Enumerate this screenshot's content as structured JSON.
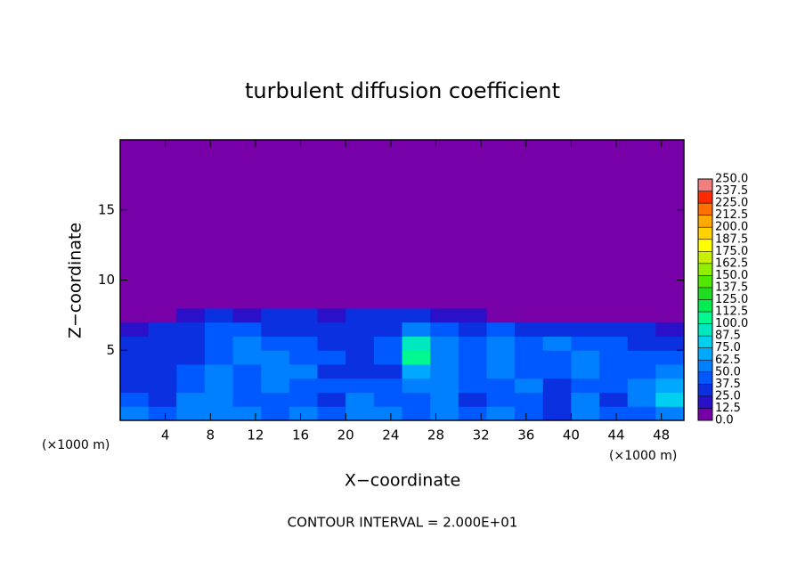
{
  "chart_data": {
    "type": "heatmap",
    "title": "turbulent diffusion coefficient",
    "x_label": "X−coordinate",
    "y_label": "Z−coordinate",
    "x_unit_labels": [
      "(×1000 m)",
      "(×1000 m)"
    ],
    "footer": "CONTOUR INTERVAL = 2.000E+01",
    "xlim": [
      0,
      50
    ],
    "ylim": [
      0,
      20
    ],
    "xticks": [
      4,
      8,
      12,
      16,
      20,
      24,
      28,
      32,
      36,
      40,
      44,
      48
    ],
    "yticks": [
      5,
      10,
      15
    ],
    "x_edges": [
      0,
      2.5,
      5,
      7.5,
      10,
      12.5,
      15,
      17.5,
      20,
      22.5,
      25,
      27.5,
      30,
      32.5,
      35,
      37.5,
      40,
      42.5,
      45,
      47.5,
      50
    ],
    "z_edges": [
      0,
      1,
      2,
      3,
      4,
      5,
      6,
      7,
      8,
      20
    ],
    "values": [
      [
        50,
        40,
        55,
        60,
        55,
        45,
        60,
        40,
        55,
        50,
        45,
        55,
        40,
        50,
        45,
        35,
        55,
        40,
        45,
        60
      ],
      [
        40,
        30,
        50,
        55,
        45,
        40,
        45,
        30,
        60,
        40,
        40,
        50,
        35,
        45,
        40,
        30,
        50,
        35,
        50,
        75
      ],
      [
        35,
        30,
        45,
        55,
        40,
        55,
        45,
        40,
        40,
        45,
        55,
        60,
        45,
        40,
        50,
        35,
        45,
        40,
        55,
        70
      ],
      [
        30,
        35,
        40,
        50,
        45,
        60,
        50,
        35,
        30,
        35,
        70,
        55,
        40,
        50,
        45,
        40,
        50,
        45,
        40,
        50
      ],
      [
        35,
        30,
        35,
        45,
        55,
        50,
        45,
        40,
        35,
        40,
        100,
        60,
        45,
        55,
        40,
        45,
        55,
        40,
        45,
        40
      ],
      [
        30,
        30,
        35,
        40,
        50,
        45,
        40,
        35,
        35,
        40,
        90,
        50,
        40,
        50,
        45,
        50,
        45,
        40,
        35,
        35
      ],
      [
        15,
        30,
        35,
        40,
        40,
        35,
        35,
        30,
        30,
        35,
        55,
        45,
        35,
        40,
        30,
        35,
        30,
        30,
        25,
        20
      ],
      [
        0,
        5,
        20,
        25,
        20,
        25,
        25,
        20,
        30,
        30,
        25,
        20,
        15,
        10,
        5,
        5,
        5,
        0,
        0,
        0
      ],
      [
        0,
        0,
        0,
        0,
        0,
        0,
        0,
        0,
        0,
        0,
        0,
        0,
        0,
        0,
        0,
        0,
        0,
        0,
        0,
        0
      ]
    ],
    "colorbar_lim": [
      0,
      250
    ],
    "colorbar_ticks": [
      {
        "value": 0,
        "label": "0.0"
      },
      12.5,
      {
        "value": 25,
        "label": "25.0"
      },
      37.5,
      {
        "value": 50,
        "label": "50.0"
      },
      62.5,
      {
        "value": 75,
        "label": "75.0"
      },
      87.5,
      {
        "value": 100,
        "label": "100.0"
      },
      112.5,
      {
        "value": 125,
        "label": "125.0"
      },
      137.5,
      {
        "value": 150,
        "label": "150.0"
      },
      162.5,
      {
        "value": 175,
        "label": "175.0"
      },
      187.5,
      {
        "value": 200,
        "label": "200.0"
      },
      212.5,
      {
        "value": 225,
        "label": "225.0"
      },
      237.5,
      {
        "value": 250,
        "label": "250.0"
      }
    ],
    "colors": [
      "#7800a8",
      "#2a10c8",
      "#0a30e0",
      "#0058ff",
      "#0080ff",
      "#00a8ff",
      "#00d0f0",
      "#00e8c0",
      "#00f890",
      "#00ec50",
      "#20dc20",
      "#50e800",
      "#90f000",
      "#c8f000",
      "#ffff00",
      "#ffd200",
      "#ffa800",
      "#ff7000",
      "#ff2a00",
      "#f08080"
    ]
  }
}
